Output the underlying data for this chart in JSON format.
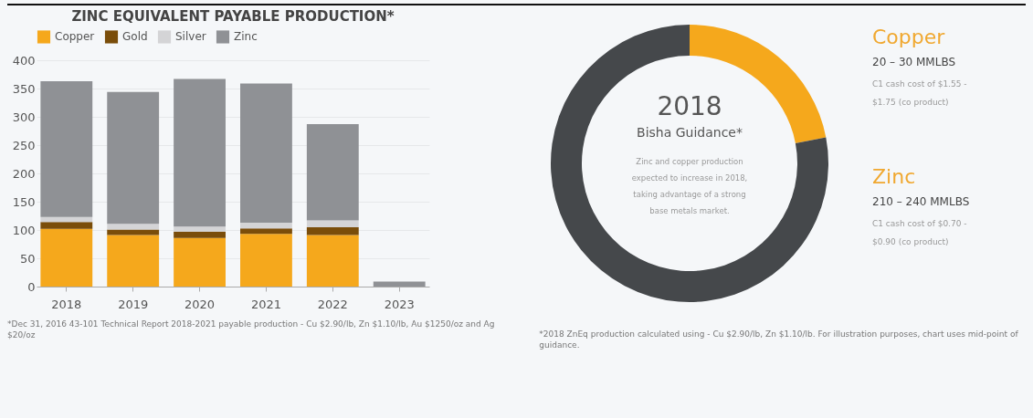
{
  "chart_data": [
    {
      "type": "bar",
      "title": "ZINC EQUIVALENT PAYABLE PRODUCTION*",
      "categories": [
        "2018",
        "2019",
        "2020",
        "2021",
        "2022",
        "2023"
      ],
      "stacked": true,
      "series": [
        {
          "name": "Copper",
          "color": "#f5a81c",
          "values": [
            102,
            91,
            86,
            93,
            91,
            0
          ]
        },
        {
          "name": "Gold",
          "color": "#7a4d0a",
          "values": [
            12,
            10,
            11,
            10,
            14,
            0
          ]
        },
        {
          "name": "Silver",
          "color": "#d4d4d6",
          "values": [
            9,
            10,
            9,
            10,
            12,
            0
          ]
        },
        {
          "name": "Zinc",
          "color": "#8f9195",
          "values": [
            240,
            233,
            261,
            246,
            170,
            9
          ]
        }
      ],
      "ylim": [
        0,
        400
      ],
      "yticks": [
        0,
        50,
        100,
        150,
        200,
        250,
        300,
        350,
        400
      ],
      "grid": "y",
      "legend": "top",
      "annotations": [
        "*Dec 31, 2016 43-101 Technical Report 2018-2021 payable production - Cu $2.90/lb, Zn $1.10/lb, Au $1250/oz and Ag $20/oz"
      ]
    },
    {
      "type": "donut",
      "categories": [
        "Copper",
        "Zinc"
      ],
      "values": [
        22,
        78
      ],
      "colors": [
        "#f5a81c",
        "#45484b"
      ],
      "annotations": [
        "2018",
        "Bisha Guidance*",
        "Zinc and copper production expected to increase in 2018, taking advantage of a strong base metals market.",
        "20 – 30 MMLBS",
        "C1 cash cost of $1.55 - $1.75 (co product)",
        "210 – 240 MMLBS",
        "C1 cash cost of $0.70 - $0.90  (co product)",
        "*2018 ZnEq production calculated using - Cu $2.90/lb, Zn $1.10/lb. For illustration purposes, chart uses mid-point of guidance."
      ]
    }
  ]
}
